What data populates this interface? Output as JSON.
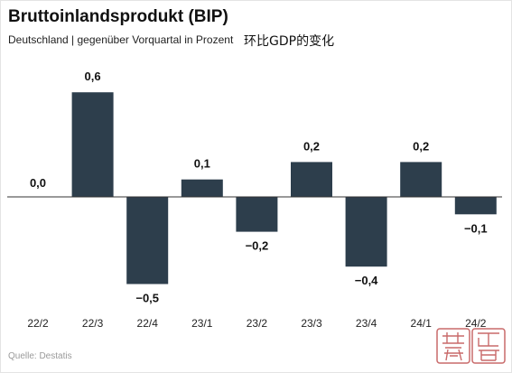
{
  "title": "Bruttoinlandsprodukt (BIP)",
  "subtitle": "Deutschland | gegenüber Vorquartal in Prozent",
  "note": "环比GDP的变化",
  "source": "Quelle: Destatis",
  "colors": {
    "bar": "#2d3e4c",
    "axis": "#333333",
    "tick_text": "#222222",
    "stamp": "#c96a6a"
  },
  "chart_data": {
    "type": "bar",
    "title": "Bruttoinlandsprodukt (BIP)",
    "subtitle": "Deutschland | gegenüber Vorquartal in Prozent",
    "categories": [
      "22/2",
      "22/3",
      "22/4",
      "23/1",
      "23/2",
      "23/3",
      "23/4",
      "24/1",
      "24/2"
    ],
    "values": [
      0.0,
      0.6,
      -0.5,
      0.1,
      -0.2,
      0.2,
      -0.4,
      0.2,
      -0.1
    ],
    "labels": [
      "0,0",
      "0,6",
      "−0,5",
      "0,1",
      "−0,2",
      "0,2",
      "−0,4",
      "0,2",
      "−0,1"
    ],
    "xlabel": "",
    "ylabel": "",
    "ylim": [
      -0.5,
      0.6
    ],
    "grid": false,
    "legend": "none"
  }
}
